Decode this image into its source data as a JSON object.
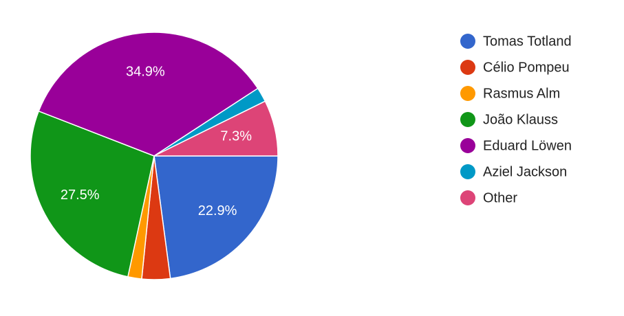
{
  "chart_data": {
    "type": "pie",
    "categories": [
      "Tomas Totland",
      "Célio Pompeu",
      "Rasmus Alm",
      "João Klauss",
      "Eduard Löwen",
      "Aziel Jackson",
      "Other"
    ],
    "values": [
      22.9,
      3.7,
      1.8,
      27.5,
      34.9,
      1.9,
      7.3
    ],
    "value_labels": [
      "22.9%",
      null,
      null,
      "27.5%",
      "34.9%",
      null,
      "7.3%"
    ],
    "colors": [
      "#3366cc",
      "#dc3912",
      "#ff9900",
      "#109618",
      "#990099",
      "#0099c6",
      "#dd4477"
    ],
    "legend": "right"
  }
}
